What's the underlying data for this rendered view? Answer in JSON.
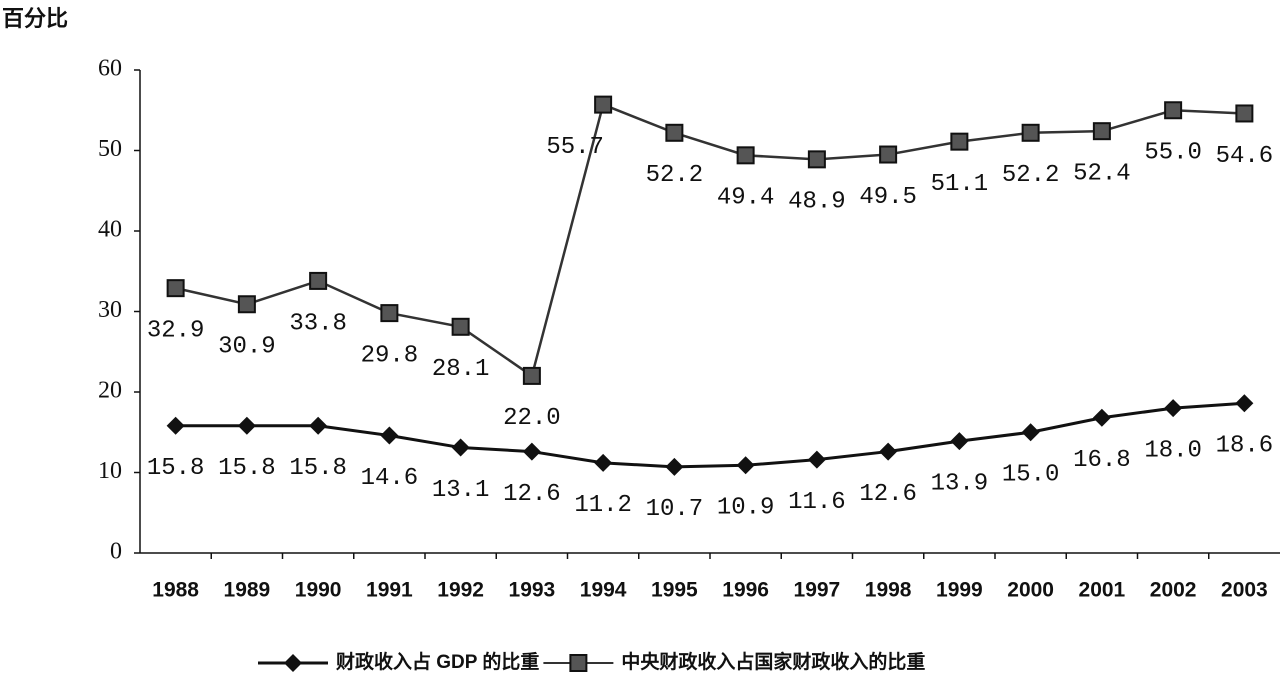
{
  "chart_data": {
    "type": "line",
    "ylabel": "百分比",
    "categories": [
      "1988",
      "1989",
      "1990",
      "1991",
      "1992",
      "1993",
      "1994",
      "1995",
      "1996",
      "1997",
      "1998",
      "1999",
      "2000",
      "2001",
      "2002",
      "2003"
    ],
    "series": [
      {
        "name": "财政收入占 GDP 的比重",
        "color": "#111111",
        "marker": "diamond",
        "values": [
          15.8,
          15.8,
          15.8,
          14.6,
          13.1,
          12.6,
          11.2,
          10.7,
          10.9,
          11.6,
          12.6,
          13.9,
          15.0,
          16.8,
          18.0,
          18.6
        ],
        "value_labels": [
          "15.8",
          "15.8",
          "15.8",
          "14.6",
          "13.1",
          "12.6",
          "11.2",
          "10.7",
          "10.9",
          "11.6",
          "12.6",
          "13.9",
          "15.0",
          "16.8",
          "18.0",
          "18.6"
        ]
      },
      {
        "name": "中央财政收入占国家财政收入的比重",
        "color": "#333333",
        "marker": "square",
        "values": [
          32.9,
          30.9,
          33.8,
          29.8,
          28.1,
          22.0,
          55.7,
          52.2,
          49.4,
          48.9,
          49.5,
          51.1,
          52.2,
          52.4,
          55.0,
          54.6
        ],
        "value_labels": [
          "32.9",
          "30.9",
          "33.8",
          "29.8",
          "28.1",
          "22.0",
          "55.7",
          "52.2",
          "49.4",
          "48.9",
          "49.5",
          "51.1",
          "52.2",
          "52.4",
          "55.0",
          "54.6"
        ]
      }
    ],
    "ylim": [
      0,
      60
    ],
    "yticks": [
      0,
      10,
      20,
      30,
      40,
      50,
      60
    ],
    "grid": false,
    "legend": "bottom"
  }
}
